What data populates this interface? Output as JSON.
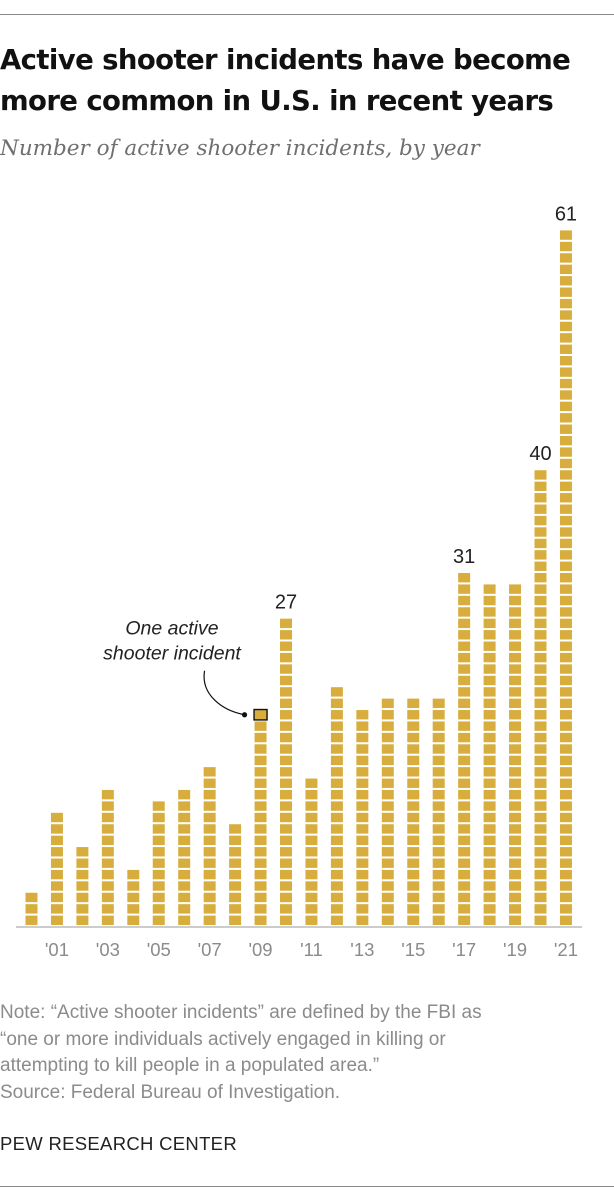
{
  "header": {
    "title_line1": "Active shooter incidents have become",
    "title_line2": "more common in U.S. in recent years",
    "subtitle": "Number of active shooter incidents, by year"
  },
  "chart_data": {
    "type": "bar",
    "title": "Active shooter incidents have become more common in U.S. in recent years",
    "subtitle": "Number of active shooter incidents, by year",
    "categories": [
      "2000",
      "2001",
      "2002",
      "2003",
      "2004",
      "2005",
      "2006",
      "2007",
      "2008",
      "2009",
      "2010",
      "2011",
      "2012",
      "2013",
      "2014",
      "2015",
      "2016",
      "2017",
      "2018",
      "2019",
      "2020",
      "2021"
    ],
    "tick_labels": [
      "",
      "'01",
      "",
      "'03",
      "",
      "'05",
      "",
      "'07",
      "",
      "'09",
      "",
      "'11",
      "",
      "'13",
      "",
      "'15",
      "",
      "'17",
      "",
      "'19",
      "",
      "'21"
    ],
    "values": [
      3,
      10,
      7,
      12,
      5,
      11,
      12,
      14,
      9,
      19,
      27,
      13,
      21,
      19,
      20,
      20,
      20,
      31,
      30,
      30,
      40,
      61
    ],
    "data_labels": {
      "10": "27",
      "17": "31",
      "20": "40",
      "21": "61"
    },
    "annotation": {
      "line1": "One active",
      "line2": "shooter incident",
      "target_bar": 9
    },
    "bar_color": "#d7ae3e",
    "unit_color": "#d7ae3e",
    "ylim": [
      0,
      61
    ],
    "grid": false,
    "legend": "none"
  },
  "footer": {
    "note_line1": "Note: “Active shooter incidents” are defined by the FBI as",
    "note_line2": "“one or more individuals actively engaged in killing or",
    "note_line3": "attempting to kill people in a populated area.”",
    "source": "Source: Federal Bureau of Investigation.",
    "org": "PEW RESEARCH CENTER"
  }
}
